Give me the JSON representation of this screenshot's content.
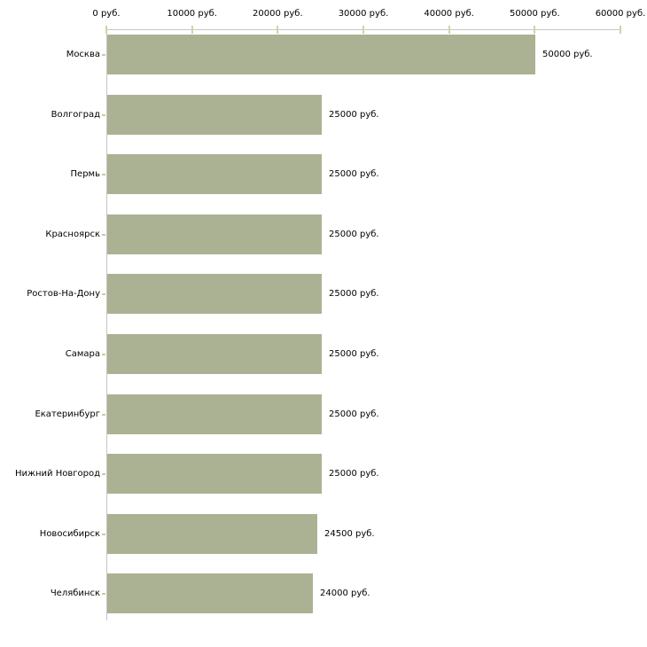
{
  "chart_data": {
    "type": "bar",
    "orientation": "horizontal",
    "title": "",
    "xlabel": "",
    "ylabel": "",
    "legend_position": "none",
    "grid": "off",
    "value_axis_position": "top",
    "categories": [
      "Москва",
      "Волгоград",
      "Пермь",
      "Красноярск",
      "Ростов-На-Дону",
      "Самара",
      "Екатеринбург",
      "Нижний Новгород",
      "Новосибирск",
      "Челябинск"
    ],
    "values": [
      50000,
      25000,
      25000,
      25000,
      25000,
      25000,
      25000,
      25000,
      24500,
      24000
    ],
    "value_labels": [
      "50000 руб.",
      "25000 руб.",
      "25000 руб.",
      "25000 руб.",
      "25000 руб.",
      "25000 руб.",
      "25000 руб.",
      "25000 руб.",
      "24500 руб.",
      "24000 руб."
    ],
    "xlim": [
      0,
      60000
    ],
    "x_tick_values": [
      0,
      10000,
      20000,
      30000,
      40000,
      50000,
      60000
    ],
    "x_tick_labels": [
      "0 руб.",
      "10000 руб.",
      "20000 руб.",
      "30000 руб.",
      "40000 руб.",
      "50000 руб.",
      "60000 руб."
    ],
    "colors": {
      "bar": "#abb293",
      "axis_line": "#c6c6c6",
      "axis_tick": "#d2d2a8",
      "category_tick": "#c9c9a3",
      "text": "#000000",
      "background": "#ffffff"
    }
  }
}
